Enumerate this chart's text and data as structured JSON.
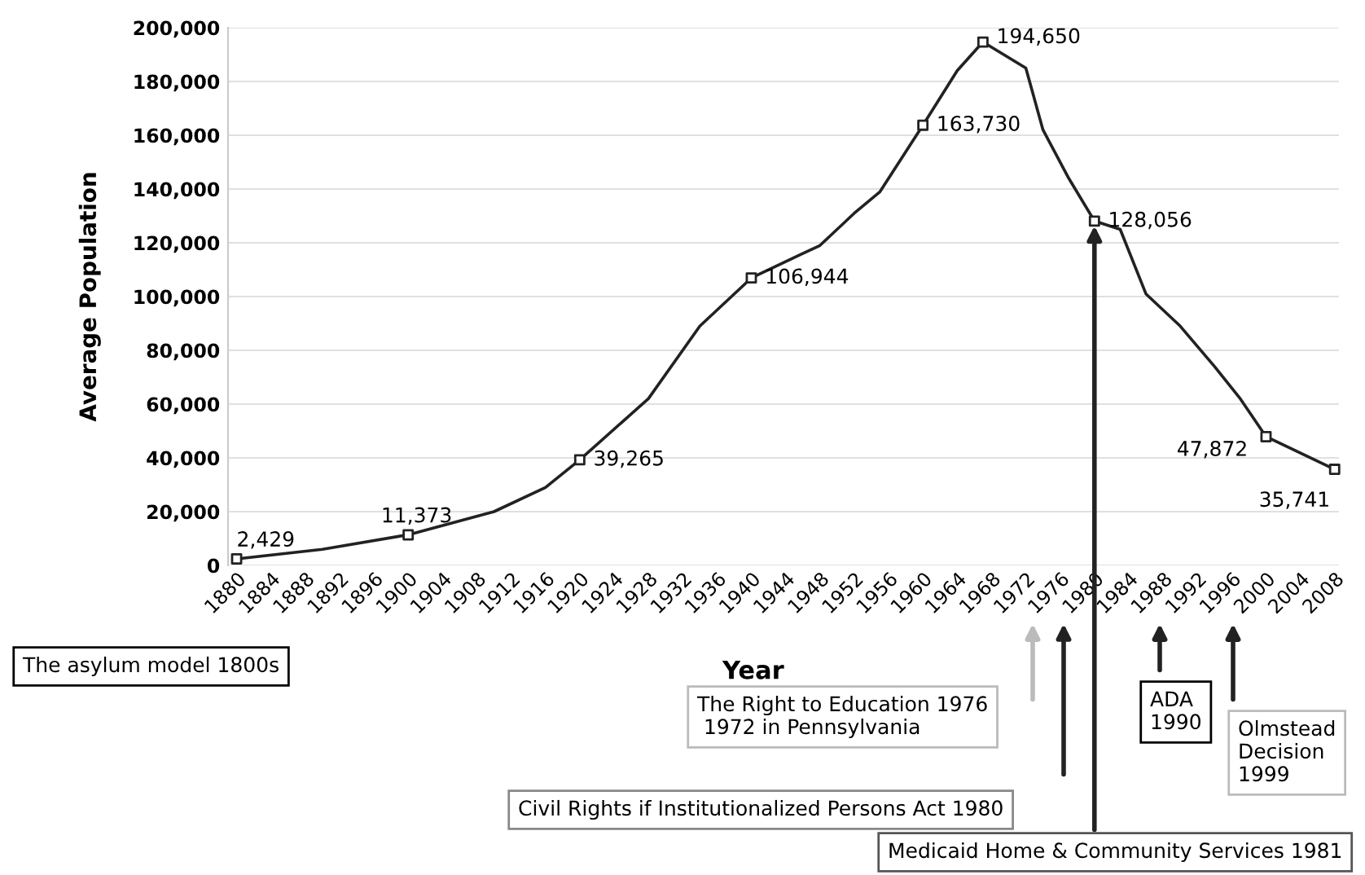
{
  "chart_data": {
    "type": "line",
    "xlabel": "Year",
    "ylabel": "Average Population",
    "xlim": [
      1879,
      2008.5
    ],
    "ylim": [
      0,
      200000
    ],
    "xticks": [
      1880,
      1884,
      1888,
      1892,
      1896,
      1900,
      1904,
      1908,
      1912,
      1916,
      1920,
      1924,
      1928,
      1932,
      1936,
      1940,
      1944,
      1948,
      1952,
      1956,
      1960,
      1964,
      1968,
      1972,
      1976,
      1980,
      1984,
      1988,
      1992,
      1996,
      2000,
      2004,
      2008
    ],
    "yticks": [
      0,
      {
        "value": 20000,
        "label": "20,000"
      },
      {
        "value": 40000,
        "label": "40,000"
      },
      {
        "value": 60000,
        "label": "60,000"
      },
      {
        "value": 80000,
        "label": "80,000"
      },
      {
        "value": 100000,
        "label": "100,000"
      },
      {
        "value": 120000,
        "label": "120,000"
      },
      {
        "value": 140000,
        "label": "140,000"
      },
      {
        "value": 160000,
        "label": "160,000"
      },
      {
        "value": 180000,
        "label": "180,000"
      },
      {
        "value": 200000,
        "label": "200,000"
      }
    ],
    "grid": "y",
    "legend": false,
    "series": [
      {
        "color": "#222222",
        "marker": "none",
        "x": [
          1880,
          1890,
          1900,
          1910,
          1916,
          1920,
          1928,
          1934,
          1940,
          1946,
          1948,
          1952,
          1955,
          1960,
          1964,
          1967,
          1972,
          1974,
          1977,
          1980,
          1983,
          1986,
          1990,
          1994,
          1997,
          2000,
          2008
        ],
        "values": [
          2400,
          6000,
          11400,
          20000,
          29000,
          39300,
          62000,
          89000,
          106900,
          116000,
          119000,
          131000,
          139000,
          163700,
          184000,
          194700,
          185000,
          162000,
          144000,
          128100,
          125000,
          101000,
          89000,
          74000,
          62000,
          47900,
          35700
        ]
      },
      {
        "type": "scatter",
        "color": "#222222",
        "marker": "square",
        "x": [
          1880,
          1900,
          1920,
          1940,
          1960,
          1967,
          1980,
          2000,
          2008
        ],
        "values": [
          2429,
          11373,
          39265,
          106944,
          163730,
          194650,
          128056,
          47872,
          35741
        ],
        "value_labels": [
          "2,429",
          "11,373",
          "39,265",
          "106,944",
          "163,730",
          "194,650",
          "128,056",
          "47,872",
          "35,741"
        ]
      }
    ],
    "annotations": [
      "The asylum model 1800s",
      "The Right to Education 1976\n 1972 in Pennsylvania",
      "Civil Rights if Institutionalized Persons Act 1980",
      "ADA\n1990",
      "Olmstead\nDecision\n1999",
      {
        "text": "Medicaid Home & Community Services 1981",
        "x": 1980,
        "y": 128056
      }
    ]
  }
}
